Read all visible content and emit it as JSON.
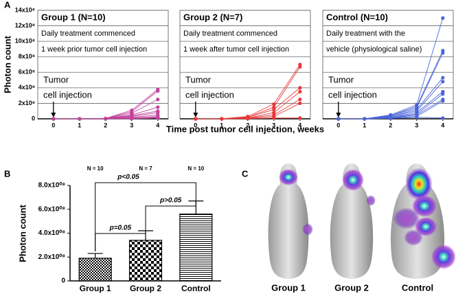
{
  "panel_letters": [
    "A",
    "B",
    "C"
  ],
  "image_panel": {
    "captions": [
      "Group 1",
      "Group 2",
      "Control"
    ]
  },
  "chart_data": [
    {
      "type": "line",
      "title": "Group 1 (N=10)",
      "color": "#c0449c",
      "annotations": [
        "Daily treatment commenced",
        "1 week prior tumor cell injection",
        "Tumor",
        "cell injection"
      ],
      "xlabel": "Time post tumor cell injection, weeks",
      "ylabel": "Photon count",
      "x": [
        0,
        1,
        2,
        3,
        4
      ],
      "xlim": [
        -0.6,
        4.4
      ],
      "xticks": [
        0,
        1,
        2,
        3,
        4
      ],
      "ylim": [
        0,
        1400000000
      ],
      "yticks": [
        0,
        {
          "value": 200000000,
          "label": "2x10⁸"
        },
        {
          "value": 400000000,
          "label": "4x10⁸"
        },
        {
          "value": 600000000,
          "label": "6x10⁸"
        },
        {
          "value": 800000000,
          "label": "8x10⁸"
        },
        {
          "value": 1000000000,
          "label": "10x10⁸"
        },
        {
          "value": 1200000000,
          "label": "12x10⁸"
        },
        {
          "value": 1400000000,
          "label": "14x10⁸"
        }
      ],
      "grid": true,
      "series": [
        {
          "values": [
            0,
            0,
            5000000,
            110000000,
            380000000
          ]
        },
        {
          "values": [
            0,
            0,
            4000000,
            90000000,
            360000000
          ]
        },
        {
          "values": [
            0,
            0,
            3000000,
            70000000,
            250000000
          ]
        },
        {
          "values": [
            0,
            0,
            2000000,
            50000000,
            150000000
          ]
        },
        {
          "values": [
            0,
            0,
            2000000,
            40000000,
            100000000
          ]
        },
        {
          "values": [
            0,
            0,
            1000000,
            30000000,
            80000000
          ]
        },
        {
          "values": [
            0,
            0,
            1000000,
            20000000,
            50000000
          ]
        },
        {
          "values": [
            0,
            0,
            1000000,
            10000000,
            30000000
          ]
        },
        {
          "values": [
            0,
            0,
            0,
            10000000,
            20000000
          ]
        },
        {
          "values": [
            0,
            0,
            0,
            0,
            10000000
          ]
        }
      ]
    },
    {
      "type": "line",
      "title": "Group 2 (N=7)",
      "color": "#e8383a",
      "annotations": [
        "Daily treatment commenced",
        "1 week after tumor cell injection",
        "Tumor",
        "cell injection"
      ],
      "x": [
        0,
        1,
        2,
        3,
        4
      ],
      "xlim": [
        -0.6,
        4.4
      ],
      "xticks": [
        0,
        1,
        2,
        3,
        4
      ],
      "ylim": [
        0,
        1400000000
      ],
      "yticks": [
        0,
        200000000,
        400000000,
        600000000,
        800000000,
        1000000000,
        1200000000,
        1400000000
      ],
      "grid": true,
      "series": [
        {
          "values": [
            0,
            0,
            30000000,
            190000000,
            700000000
          ]
        },
        {
          "values": [
            0,
            0,
            20000000,
            150000000,
            670000000
          ]
        },
        {
          "values": [
            0,
            0,
            20000000,
            120000000,
            400000000
          ]
        },
        {
          "values": [
            0,
            0,
            10000000,
            80000000,
            350000000
          ]
        },
        {
          "values": [
            0,
            0,
            10000000,
            50000000,
            250000000
          ]
        },
        {
          "values": [
            0,
            0,
            5000000,
            30000000,
            200000000
          ]
        },
        {
          "values": [
            0,
            0,
            2000000,
            10000000,
            10000000
          ]
        }
      ]
    },
    {
      "type": "line",
      "title": "Control (N=10)",
      "color": "#4a64d8",
      "annotations": [
        "Daily treatment with the",
        "vehicle (physiological saline)",
        "Tumor",
        "cell injection"
      ],
      "x": [
        0,
        1,
        2,
        3,
        4
      ],
      "xlim": [
        -0.6,
        4.4
      ],
      "xticks": [
        0,
        1,
        2,
        3,
        4
      ],
      "ylim": [
        0,
        1400000000
      ],
      "yticks": [
        0,
        200000000,
        400000000,
        600000000,
        800000000,
        1000000000,
        1200000000,
        1400000000
      ],
      "grid": true,
      "series": [
        {
          "values": [
            0,
            0,
            50000000,
            180000000,
            1300000000
          ]
        },
        {
          "values": [
            0,
            0,
            40000000,
            160000000,
            880000000
          ]
        },
        {
          "values": [
            0,
            0,
            40000000,
            140000000,
            850000000
          ]
        },
        {
          "values": [
            0,
            0,
            30000000,
            120000000,
            530000000
          ]
        },
        {
          "values": [
            0,
            0,
            30000000,
            100000000,
            480000000
          ]
        },
        {
          "values": [
            0,
            0,
            20000000,
            80000000,
            350000000
          ]
        },
        {
          "values": [
            0,
            0,
            20000000,
            60000000,
            320000000
          ]
        },
        {
          "values": [
            0,
            0,
            10000000,
            50000000,
            250000000
          ]
        },
        {
          "values": [
            0,
            0,
            10000000,
            30000000,
            230000000
          ]
        },
        {
          "values": [
            0,
            0,
            5000000,
            20000000,
            10000000
          ]
        }
      ]
    },
    {
      "type": "errorbar",
      "ylabel": "Photon count",
      "categories": [
        "Group 1",
        "Group 2",
        "Control"
      ],
      "values": [
        190000000,
        340000000,
        560000000
      ],
      "errors": [
        40000000,
        80000000,
        110000000
      ],
      "n_labels": [
        "N = 10",
        "N = 7",
        "N = 10"
      ],
      "comparisons": [
        "p<0.05",
        "p=0.05",
        "p>0.05"
      ],
      "ylim": [
        0,
        800000000
      ],
      "yticks": [
        0,
        {
          "value": 200000000,
          "label": "2.0x10⁰⁸"
        },
        {
          "value": 400000000,
          "label": "4.0x10⁰⁸"
        },
        {
          "value": 600000000,
          "label": "6.0x10⁰⁸"
        },
        {
          "value": 800000000,
          "label": "8.0x10⁰⁸"
        }
      ]
    }
  ]
}
